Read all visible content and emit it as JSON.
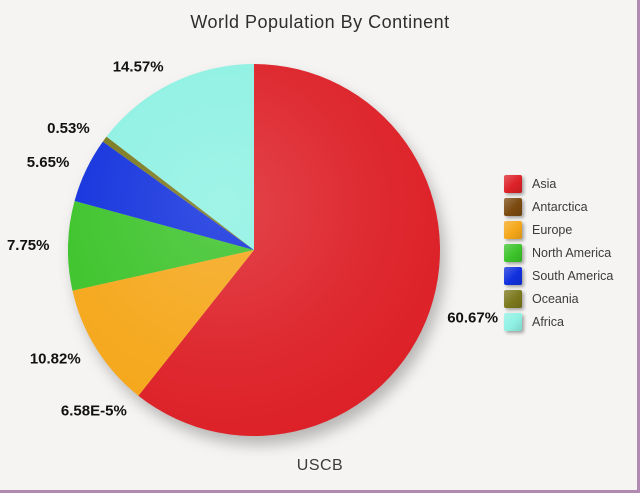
{
  "frame": {
    "background_color": "#f5f4f2",
    "border_color": "#b18ab1"
  },
  "chart_data": {
    "type": "pie",
    "title": "World Population By Continent",
    "source_label": "USCB",
    "start_angle_deg": 0,
    "direction": "clockwise",
    "legend_position": "right",
    "slices": [
      {
        "name": "Asia",
        "value_pct": 60.67,
        "label": "60.67%",
        "color": "#dd2128"
      },
      {
        "name": "Antarctica",
        "value_pct": 6.58e-05,
        "label": "6.58E-5%",
        "color": "#7b4a10"
      },
      {
        "name": "Europe",
        "value_pct": 10.82,
        "label": "10.82%",
        "color": "#f5a71a"
      },
      {
        "name": "North America",
        "value_pct": 7.75,
        "label": "7.75%",
        "color": "#3cc32a"
      },
      {
        "name": "South America",
        "value_pct": 5.65,
        "label": "5.65%",
        "color": "#1130dd"
      },
      {
        "name": "Oceania",
        "value_pct": 0.53,
        "label": "0.53%",
        "color": "#7b781d"
      },
      {
        "name": "Africa",
        "value_pct": 14.57,
        "label": "14.57%",
        "color": "#8ef1e3"
      }
    ]
  }
}
